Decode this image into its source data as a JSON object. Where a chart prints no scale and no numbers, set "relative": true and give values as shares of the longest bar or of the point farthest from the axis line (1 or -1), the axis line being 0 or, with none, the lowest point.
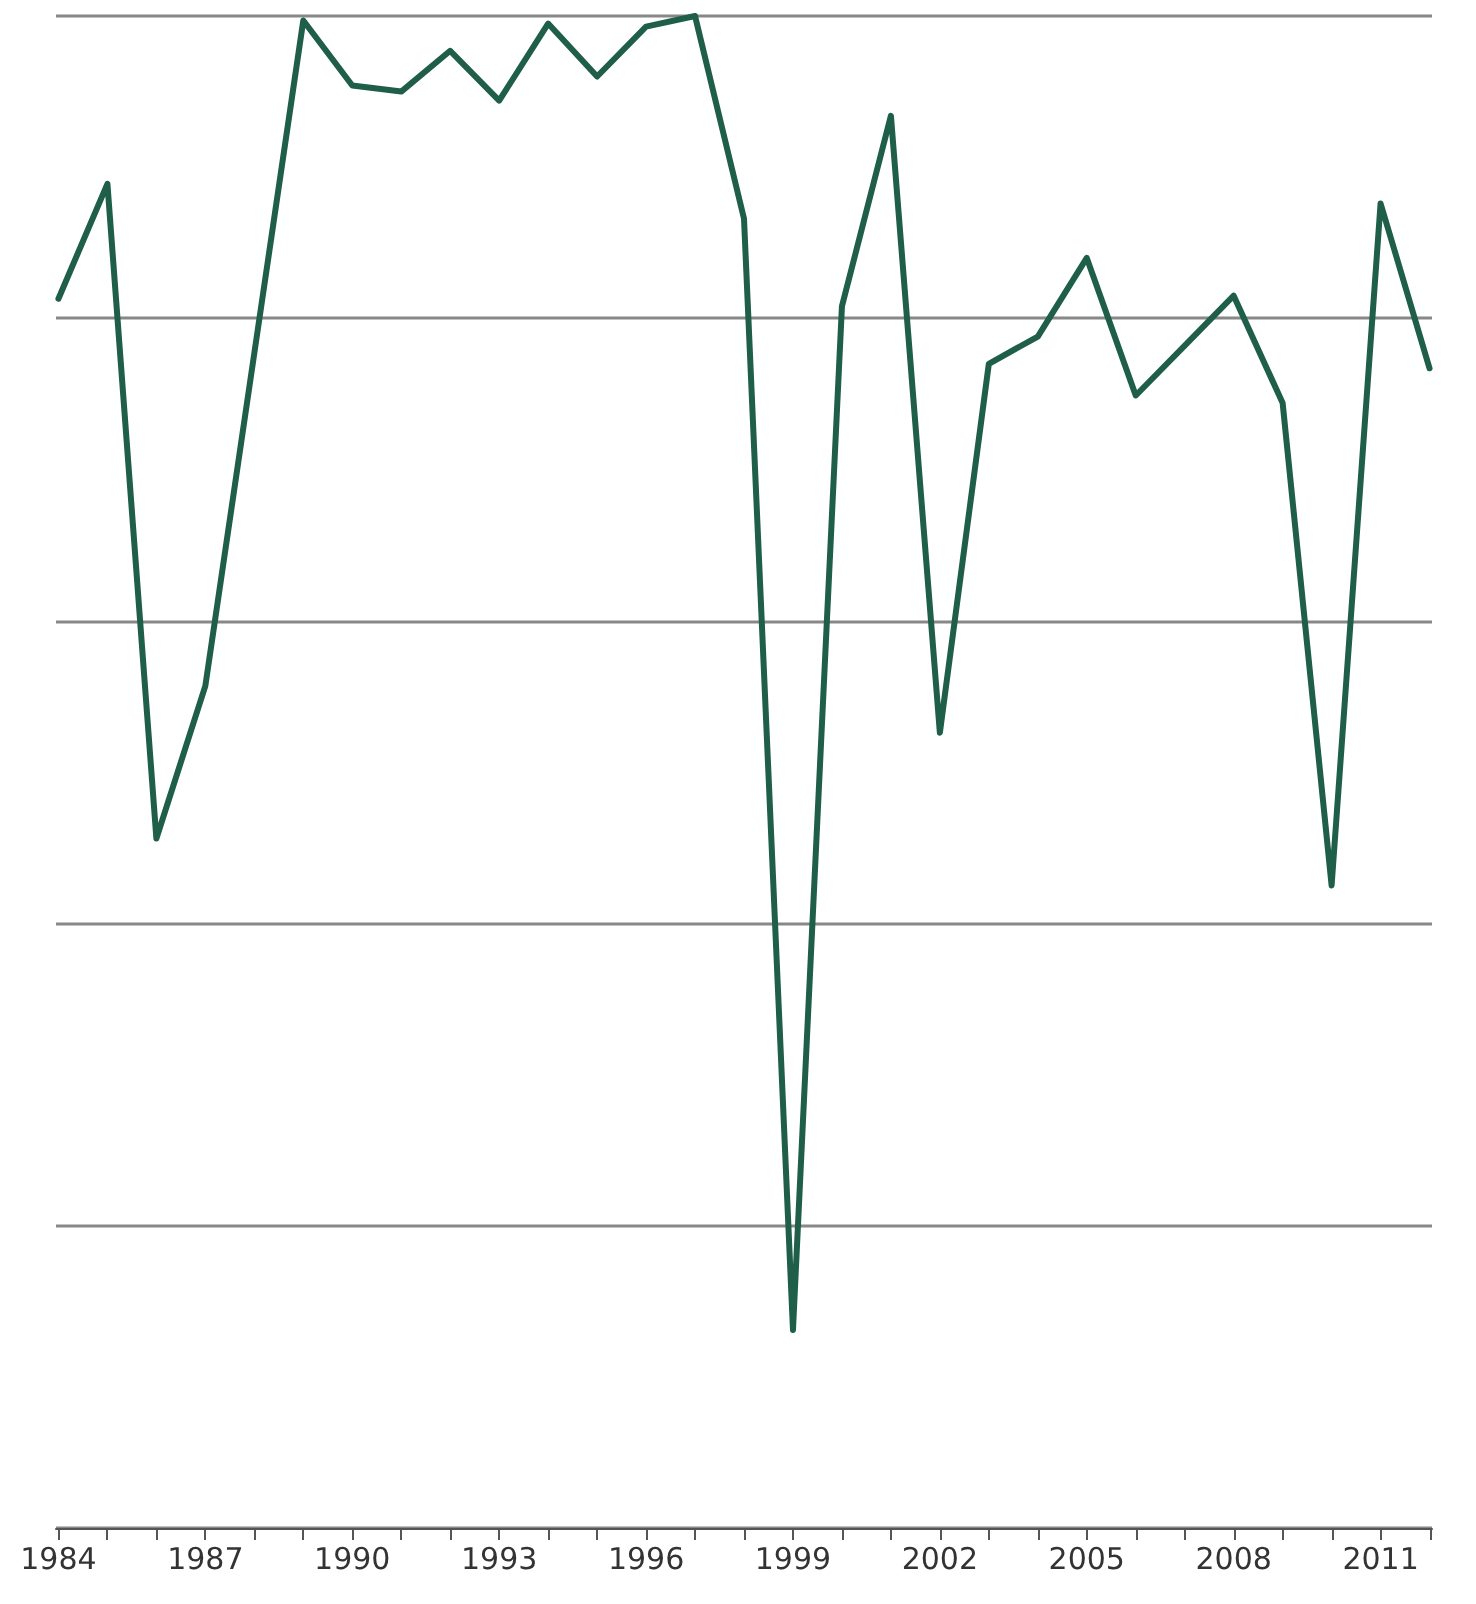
{
  "chart_data": {
    "type": "line",
    "relative": true,
    "x": [
      1984,
      1985,
      1986,
      1987,
      1988,
      1989,
      1990,
      1991,
      1992,
      1993,
      1994,
      1995,
      1996,
      1997,
      1998,
      1999,
      2000,
      2001,
      2002,
      2003,
      2004,
      2005,
      2006,
      2007,
      2008,
      2009,
      2010,
      2011,
      2012
    ],
    "series": [
      {
        "color": "#1f5e48",
        "values": [
          0.813,
          0.889,
          0.456,
          0.557,
          0.777,
          0.997,
          0.954,
          0.95,
          0.977,
          0.944,
          0.995,
          0.96,
          0.993,
          1,
          0.866,
          0.131,
          0.808,
          0.934,
          0.526,
          0.77,
          0.788,
          0.84,
          0.749,
          0.782,
          0.815,
          0.744,
          0.425,
          0.876,
          0.767
        ]
      }
    ],
    "xlim": [
      1983.95,
      2012.05
    ],
    "xticks": [
      1984,
      {
        "value": 1985,
        "label": null
      },
      {
        "value": 1986,
        "label": null
      },
      1987,
      {
        "value": 1988,
        "label": null
      },
      {
        "value": 1989,
        "label": null
      },
      1990,
      {
        "value": 1991,
        "label": null
      },
      {
        "value": 1992,
        "label": null
      },
      1993,
      {
        "value": 1994,
        "label": null
      },
      {
        "value": 1995,
        "label": null
      },
      1996,
      {
        "value": 1997,
        "label": null
      },
      {
        "value": 1998,
        "label": null
      },
      1999,
      {
        "value": 2000,
        "label": null
      },
      {
        "value": 2001,
        "label": null
      },
      2002,
      {
        "value": 2003,
        "label": null
      },
      {
        "value": 2004,
        "label": null
      },
      2005,
      {
        "value": 2006,
        "label": null
      },
      {
        "value": 2007,
        "label": null
      },
      2008,
      {
        "value": 2009,
        "label": null
      },
      {
        "value": 2010,
        "label": null
      },
      2011,
      {
        "value": 2012,
        "label": null
      }
    ],
    "grid": "y",
    "marker": "none",
    "line_style": "solid"
  }
}
